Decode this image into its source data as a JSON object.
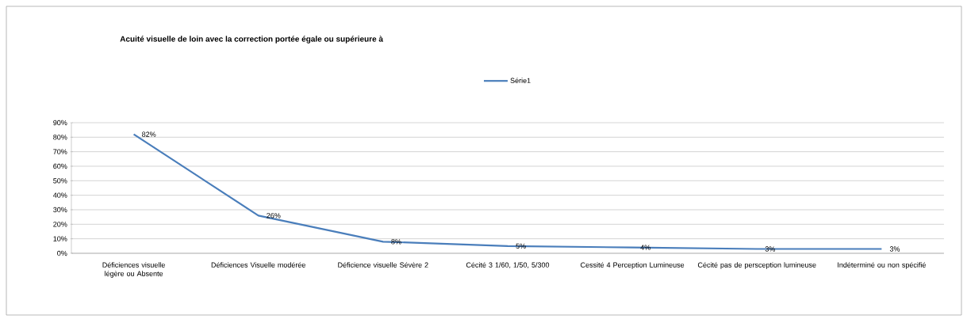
{
  "chart_data": {
    "type": "line",
    "title": "Acuité visuelle de loin avec la correction portée égale ou supérieure à",
    "categories": [
      "Déficiences visuelle légère ou Absente",
      "Déficiences Visuelle modérée",
      "Déficience visuelle Sévère 2",
      "Cécité 3 1/60, 1/50, 5/300",
      "Cessité 4 Perception Lumineuse",
      "Cécité pas de persception lumineuse",
      "Indéterminé ou non spécifié"
    ],
    "series": [
      {
        "name": "Série1",
        "color": "#4a7ebb",
        "values": [
          82,
          26,
          8,
          5,
          4,
          3,
          3
        ],
        "value_labels": [
          "82%",
          "26%",
          "8%",
          "5%",
          "4%",
          "3%",
          "3%"
        ]
      }
    ],
    "ylim": [
      0,
      90
    ],
    "yticks": [
      {
        "value": 0,
        "label": "0%"
      },
      {
        "value": 10,
        "label": "10%"
      },
      {
        "value": 20,
        "label": "20%"
      },
      {
        "value": 30,
        "label": "30%"
      },
      {
        "value": 40,
        "label": "40%"
      },
      {
        "value": 50,
        "label": "50%"
      },
      {
        "value": 60,
        "label": "60%"
      },
      {
        "value": 70,
        "label": "70%"
      },
      {
        "value": 80,
        "label": "80%"
      },
      {
        "value": 90,
        "label": "90%"
      }
    ],
    "grid": "y",
    "legend": "top",
    "marker": "none",
    "line_style": "solid"
  }
}
